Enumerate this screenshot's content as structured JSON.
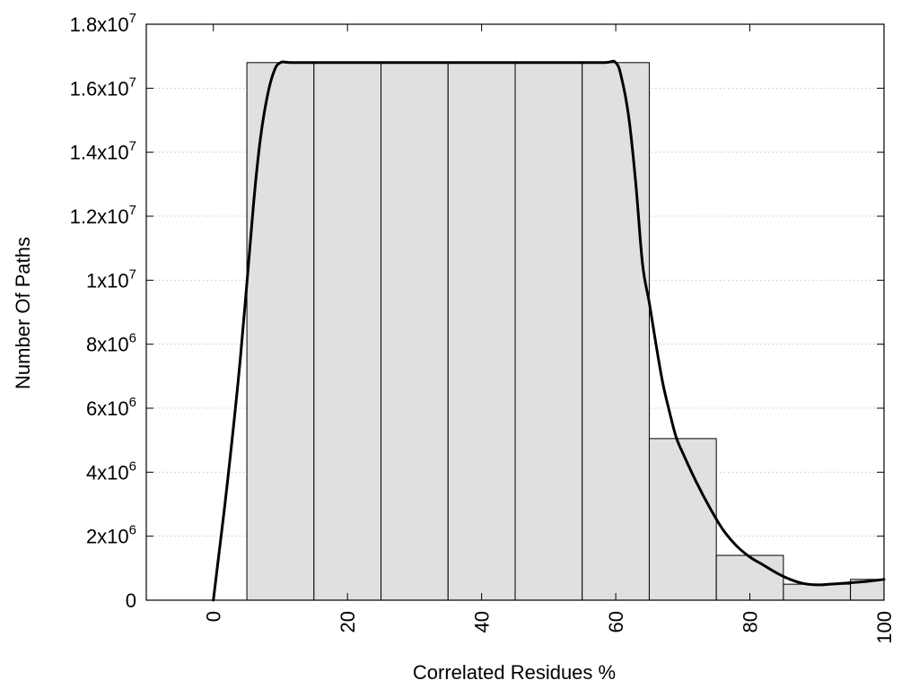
{
  "chart_data": {
    "type": "bar",
    "title": "",
    "xlabel": "Correlated Residues %",
    "ylabel": "Number Of Paths",
    "xlim": [
      -10,
      100
    ],
    "ylim": [
      0,
      18000000
    ],
    "grid": true,
    "x_ticks": [
      {
        "value": 0,
        "label": "0"
      },
      {
        "value": 20,
        "label": "20"
      },
      {
        "value": 40,
        "label": "40"
      },
      {
        "value": 60,
        "label": "60"
      },
      {
        "value": 80,
        "label": "80"
      },
      {
        "value": 100,
        "label": "100"
      }
    ],
    "y_ticks": [
      {
        "value": 0,
        "mantissa": "0",
        "exp": ""
      },
      {
        "value": 2000000,
        "mantissa": "2x10",
        "exp": "6"
      },
      {
        "value": 4000000,
        "mantissa": "4x10",
        "exp": "6"
      },
      {
        "value": 6000000,
        "mantissa": "6x10",
        "exp": "6"
      },
      {
        "value": 8000000,
        "mantissa": "8x10",
        "exp": "6"
      },
      {
        "value": 10000000,
        "mantissa": "1x10",
        "exp": "7"
      },
      {
        "value": 12000000,
        "mantissa": "1.2x10",
        "exp": "7"
      },
      {
        "value": 14000000,
        "mantissa": "1.4x10",
        "exp": "7"
      },
      {
        "value": 16000000,
        "mantissa": "1.6x10",
        "exp": "7"
      },
      {
        "value": 18000000,
        "mantissa": "1.8x10",
        "exp": "7"
      }
    ],
    "bars": [
      {
        "x0": 5,
        "x1": 15,
        "value": 16800000
      },
      {
        "x0": 15,
        "x1": 25,
        "value": 16800000
      },
      {
        "x0": 25,
        "x1": 35,
        "value": 16800000
      },
      {
        "x0": 35,
        "x1": 45,
        "value": 16800000
      },
      {
        "x0": 45,
        "x1": 55,
        "value": 16800000
      },
      {
        "x0": 55,
        "x1": 65,
        "value": 16800000
      },
      {
        "x0": 65,
        "x1": 75,
        "value": 5050000
      },
      {
        "x0": 75,
        "x1": 85,
        "value": 1400000
      },
      {
        "x0": 85,
        "x1": 95,
        "value": 500000
      },
      {
        "x0": 95,
        "x1": 100,
        "value": 650000
      }
    ],
    "curve": {
      "x": [
        0,
        2,
        4,
        6,
        7,
        8,
        9,
        10,
        12,
        20,
        30,
        40,
        50,
        58,
        60,
        61,
        62,
        63,
        64,
        65,
        66,
        67,
        68,
        69,
        70,
        72,
        74,
        76,
        78,
        80,
        82,
        84,
        86,
        88,
        90,
        92,
        94,
        96,
        98,
        100
      ],
      "y": [
        0,
        3500000,
        7500000,
        12400000,
        14400000,
        15700000,
        16500000,
        16800000,
        16800000,
        16800000,
        16800000,
        16800000,
        16800000,
        16800000,
        16800000,
        16200000,
        15000000,
        13000000,
        10500000,
        9300000,
        8000000,
        6800000,
        5900000,
        5100000,
        4600000,
        3700000,
        2900000,
        2200000,
        1700000,
        1350000,
        1100000,
        850000,
        650000,
        520000,
        480000,
        500000,
        530000,
        560000,
        600000,
        650000
      ]
    },
    "colors": {
      "bar_fill": "#e0e0e0",
      "bar_stroke": "#000000",
      "curve": "#000000",
      "grid": "#bbbbbb"
    }
  }
}
